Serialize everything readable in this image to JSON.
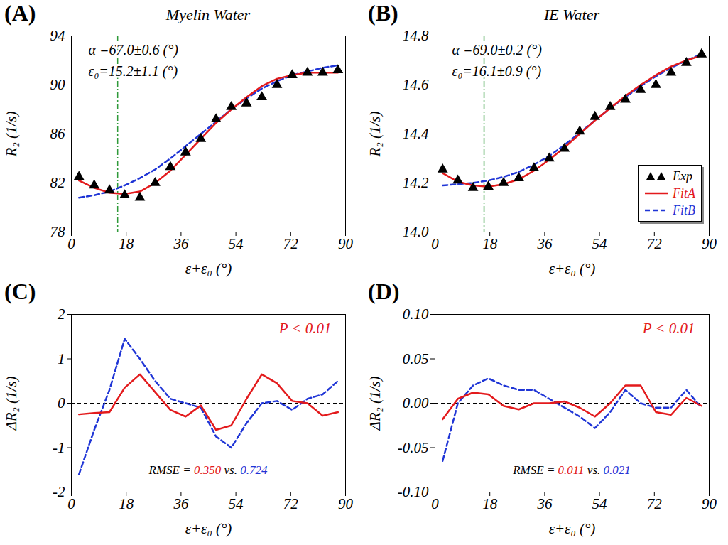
{
  "chart_data": [
    {
      "type": "line",
      "panel_label": "(A)",
      "title": "Myelin Water",
      "x_label": "ε+ε₀ (°)",
      "y_label": "R₂ (1/s)",
      "x": [
        2.5,
        7.5,
        12.5,
        17.5,
        22.5,
        27.5,
        32.5,
        37.5,
        42.5,
        47.5,
        52.5,
        57.5,
        62.5,
        67.5,
        72.5,
        77.5,
        82.5,
        87.5
      ],
      "series": [
        {
          "name": "Exp",
          "type": "scatter",
          "marker": "triangle",
          "color": "#000000",
          "values": [
            82.5,
            81.8,
            81.4,
            81.0,
            80.8,
            82.0,
            83.3,
            84.5,
            85.6,
            87.2,
            88.2,
            88.5,
            89.0,
            90.0,
            90.8,
            91.0,
            91.0,
            91.2
          ]
        },
        {
          "name": "FitA",
          "type": "line",
          "line_style": "solid",
          "color": "#e31a1c",
          "values": [
            82.2,
            81.6,
            81.2,
            81.1,
            81.3,
            82.0,
            83.0,
            84.3,
            85.6,
            86.9,
            88.0,
            89.0,
            89.9,
            90.5,
            90.8,
            91.0,
            91.0,
            91.0
          ]
        },
        {
          "name": "FitB",
          "type": "line",
          "line_style": "dashed",
          "color": "#1f35d6",
          "values": [
            80.8,
            81.0,
            81.3,
            81.8,
            82.4,
            83.1,
            84.0,
            85.0,
            86.0,
            87.0,
            88.0,
            88.9,
            89.7,
            90.3,
            90.8,
            91.1,
            91.4,
            91.6
          ]
        }
      ],
      "xlim": [
        0,
        90
      ],
      "xticks": [
        0,
        18,
        36,
        54,
        72,
        90
      ],
      "ylim": [
        78,
        94
      ],
      "yticks": [
        78,
        82,
        86,
        90,
        94
      ],
      "annotations": [
        "α =67.0±0.6 (°)",
        "ε₀=15.2±1.1 (°)"
      ],
      "vline": 15.2
    },
    {
      "type": "line",
      "panel_label": "(B)",
      "title": "IE Water",
      "x_label": "ε+ε₀ (°)",
      "y_label": "R₂ (1/s)",
      "x": [
        2.5,
        7.5,
        12.5,
        17.5,
        22.5,
        27.5,
        32.5,
        37.5,
        42.5,
        47.5,
        52.5,
        57.5,
        62.5,
        67.5,
        72.5,
        77.5,
        82.5,
        87.5
      ],
      "series": [
        {
          "name": "Exp",
          "type": "scatter",
          "marker": "triangle",
          "color": "#000000",
          "values": [
            14.255,
            14.21,
            14.18,
            14.185,
            14.2,
            14.22,
            14.26,
            14.3,
            14.34,
            14.41,
            14.47,
            14.51,
            14.54,
            14.58,
            14.6,
            14.65,
            14.69,
            14.725
          ]
        },
        {
          "name": "FitA",
          "type": "line",
          "line_style": "solid",
          "color": "#e31a1c",
          "values": [
            14.24,
            14.205,
            14.19,
            14.185,
            14.195,
            14.215,
            14.25,
            14.295,
            14.345,
            14.4,
            14.455,
            14.505,
            14.555,
            14.6,
            14.64,
            14.675,
            14.7,
            14.72
          ]
        },
        {
          "name": "FitB",
          "type": "line",
          "line_style": "dashed",
          "color": "#1f35d6",
          "values": [
            14.19,
            14.195,
            14.2,
            14.21,
            14.225,
            14.245,
            14.275,
            14.31,
            14.355,
            14.405,
            14.455,
            14.505,
            14.55,
            14.595,
            14.635,
            14.67,
            14.7,
            14.725
          ]
        }
      ],
      "xlim": [
        0,
        90
      ],
      "xticks": [
        0,
        18,
        36,
        54,
        72,
        90
      ],
      "ylim": [
        14.0,
        14.8
      ],
      "yticks": [
        {
          "value": 14,
          "label": "14.0"
        },
        14.2,
        14.4,
        14.6,
        14.8
      ],
      "annotations": [
        "α =69.0±0.2 (°)",
        "ε₀=16.1±0.9 (°)"
      ],
      "vline": 16.1,
      "legend": "lower right"
    },
    {
      "type": "line",
      "panel_label": "(C)",
      "x_label": "ε+ε₀ (°)",
      "y_label": "ΔR₂ (1/s)",
      "x": [
        2.5,
        7.5,
        12.5,
        17.5,
        22.5,
        27.5,
        32.5,
        37.5,
        42.5,
        47.5,
        52.5,
        57.5,
        62.5,
        67.5,
        72.5,
        77.5,
        82.5,
        87.5
      ],
      "series": [
        {
          "name": "FitA",
          "line_style": "solid",
          "color": "#e31a1c",
          "values": [
            -0.25,
            -0.22,
            -0.2,
            0.35,
            0.65,
            0.25,
            -0.15,
            -0.3,
            -0.05,
            -0.6,
            -0.5,
            0.1,
            0.65,
            0.45,
            0.05,
            0.0,
            -0.28,
            -0.2
          ]
        },
        {
          "name": "FitB",
          "line_style": "dashed",
          "color": "#1f35d6",
          "values": [
            -1.6,
            -0.6,
            0.3,
            1.45,
            1.0,
            0.5,
            0.1,
            0.0,
            -0.1,
            -0.75,
            -1.0,
            -0.45,
            0.0,
            0.05,
            -0.15,
            0.1,
            0.2,
            0.5
          ]
        }
      ],
      "xlim": [
        0,
        90
      ],
      "xticks": [
        0,
        18,
        36,
        54,
        72,
        90
      ],
      "ylim": [
        -2,
        2
      ],
      "yticks": [
        -2,
        -1,
        0,
        1,
        2
      ],
      "hline": 0,
      "significance": "P < 0.01",
      "rmse": {
        "label": "RMSE =",
        "joiner": "vs.",
        "FitA": "0.350",
        "FitB": "0.724"
      }
    },
    {
      "type": "line",
      "panel_label": "(D)",
      "x_label": "ε+ε₀ (°)",
      "y_label": "ΔR₂ (1/s)",
      "x": [
        2.5,
        7.5,
        12.5,
        17.5,
        22.5,
        27.5,
        32.5,
        37.5,
        42.5,
        47.5,
        52.5,
        57.5,
        62.5,
        67.5,
        72.5,
        77.5,
        82.5,
        87.5
      ],
      "series": [
        {
          "name": "FitA",
          "line_style": "solid",
          "color": "#e31a1c",
          "values": [
            -0.018,
            0.005,
            0.012,
            0.01,
            -0.003,
            -0.007,
            0.0,
            0.0,
            0.002,
            -0.005,
            -0.015,
            0.0,
            0.02,
            0.02,
            -0.01,
            -0.013,
            0.006,
            -0.003
          ]
        },
        {
          "name": "FitB",
          "line_style": "dashed",
          "color": "#1f35d6",
          "values": [
            -0.065,
            0.0,
            0.02,
            0.028,
            0.02,
            0.015,
            0.015,
            0.005,
            -0.005,
            -0.015,
            -0.028,
            -0.01,
            0.015,
            0.0,
            -0.005,
            -0.005,
            0.015,
            -0.005
          ]
        }
      ],
      "xlim": [
        0,
        90
      ],
      "xticks": [
        0,
        18,
        36,
        54,
        72,
        90
      ],
      "ylim": [
        -0.1,
        0.1
      ],
      "yticks": [
        {
          "value": -0.1,
          "label": "-0.10"
        },
        {
          "value": -0.05,
          "label": "-0.05"
        },
        {
          "value": 0,
          "label": "0.00"
        },
        {
          "value": 0.05,
          "label": "0.05"
        },
        {
          "value": 0.1,
          "label": "0.10"
        }
      ],
      "hline": 0,
      "significance": "P < 0.01",
      "rmse": {
        "label": "RMSE =",
        "joiner": "vs.",
        "FitA": "0.011",
        "FitB": "0.021"
      }
    }
  ]
}
